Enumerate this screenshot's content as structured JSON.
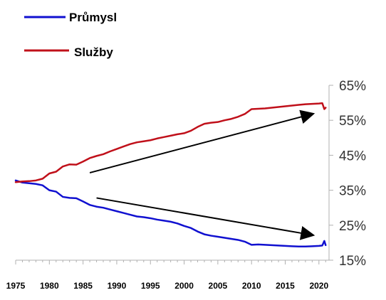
{
  "chart_data": {
    "type": "line",
    "legend": [
      {
        "label": "Průmysl",
        "color": "#1010d0"
      },
      {
        "label": "Služby",
        "color": "#c0101a"
      }
    ],
    "legend_position": "top-left",
    "x_ticks": [
      "1975",
      "1980",
      "1985",
      "1990",
      "1995",
      "2000",
      "2005",
      "2010",
      "2015",
      "2020"
    ],
    "y_ticks": [
      "65%",
      "55%",
      "45%",
      "35%",
      "25%",
      "15%"
    ],
    "y_axis_side": "right",
    "xlim": [
      1975,
      2021.5
    ],
    "ylim": [
      15,
      65
    ],
    "grid": false,
    "series": [
      {
        "name": "Průmysl",
        "color": "#1010d0",
        "points": [
          [
            1975,
            37.8
          ],
          [
            1976,
            37.2
          ],
          [
            1977,
            37.0
          ],
          [
            1978,
            36.8
          ],
          [
            1979,
            36.4
          ],
          [
            1980,
            35.0
          ],
          [
            1981,
            34.6
          ],
          [
            1982,
            33.1
          ],
          [
            1983,
            32.8
          ],
          [
            1984,
            32.7
          ],
          [
            1985,
            31.8
          ],
          [
            1986,
            30.8
          ],
          [
            1987,
            30.3
          ],
          [
            1988,
            30.0
          ],
          [
            1989,
            29.5
          ],
          [
            1990,
            29.0
          ],
          [
            1991,
            28.5
          ],
          [
            1992,
            28.0
          ],
          [
            1993,
            27.5
          ],
          [
            1994,
            27.3
          ],
          [
            1995,
            27.0
          ],
          [
            1996,
            26.6
          ],
          [
            1997,
            26.3
          ],
          [
            1998,
            26.0
          ],
          [
            1999,
            25.5
          ],
          [
            2000,
            24.8
          ],
          [
            2001,
            24.2
          ],
          [
            2002,
            23.2
          ],
          [
            2003,
            22.4
          ],
          [
            2004,
            22.0
          ],
          [
            2005,
            21.7
          ],
          [
            2006,
            21.4
          ],
          [
            2007,
            21.1
          ],
          [
            2008,
            20.8
          ],
          [
            2009,
            20.3
          ],
          [
            2010,
            19.4
          ],
          [
            2011,
            19.5
          ],
          [
            2012,
            19.4
          ],
          [
            2013,
            19.3
          ],
          [
            2014,
            19.2
          ],
          [
            2015,
            19.1
          ],
          [
            2016,
            19.0
          ],
          [
            2017,
            18.9
          ],
          [
            2018,
            18.9
          ],
          [
            2019,
            19.0
          ],
          [
            2020,
            19.1
          ],
          [
            2020.5,
            19.2
          ],
          [
            2020.8,
            20.5
          ],
          [
            2021,
            19.3
          ]
        ]
      },
      {
        "name": "Služby",
        "color": "#c0101a",
        "points": [
          [
            1975,
            37.3
          ],
          [
            1976,
            37.5
          ],
          [
            1977,
            37.6
          ],
          [
            1978,
            37.8
          ],
          [
            1979,
            38.3
          ],
          [
            1980,
            39.8
          ],
          [
            1981,
            40.3
          ],
          [
            1982,
            41.8
          ],
          [
            1983,
            42.4
          ],
          [
            1984,
            42.3
          ],
          [
            1985,
            43.2
          ],
          [
            1986,
            44.2
          ],
          [
            1987,
            44.8
          ],
          [
            1988,
            45.3
          ],
          [
            1989,
            46.1
          ],
          [
            1990,
            46.8
          ],
          [
            1991,
            47.5
          ],
          [
            1992,
            48.2
          ],
          [
            1993,
            48.7
          ],
          [
            1994,
            49.0
          ],
          [
            1995,
            49.3
          ],
          [
            1996,
            49.8
          ],
          [
            1997,
            50.2
          ],
          [
            1998,
            50.6
          ],
          [
            1999,
            51.0
          ],
          [
            2000,
            51.3
          ],
          [
            2001,
            52.0
          ],
          [
            2002,
            53.1
          ],
          [
            2003,
            54.0
          ],
          [
            2004,
            54.3
          ],
          [
            2005,
            54.5
          ],
          [
            2006,
            55.0
          ],
          [
            2007,
            55.4
          ],
          [
            2008,
            56.0
          ],
          [
            2009,
            56.8
          ],
          [
            2010,
            58.2
          ],
          [
            2011,
            58.3
          ],
          [
            2012,
            58.4
          ],
          [
            2013,
            58.6
          ],
          [
            2014,
            58.8
          ],
          [
            2015,
            59.0
          ],
          [
            2016,
            59.2
          ],
          [
            2017,
            59.4
          ],
          [
            2018,
            59.6
          ],
          [
            2019,
            59.7
          ],
          [
            2020,
            59.8
          ],
          [
            2020.5,
            59.9
          ],
          [
            2020.8,
            58.2
          ],
          [
            2021,
            58.6
          ]
        ]
      }
    ],
    "annotations": [
      {
        "type": "arrow",
        "from": [
          1986,
          40
        ],
        "to": [
          2019,
          56.8
        ]
      },
      {
        "type": "arrow",
        "from": [
          1987,
          32.8
        ],
        "to": [
          2019,
          22.2
        ]
      }
    ]
  }
}
